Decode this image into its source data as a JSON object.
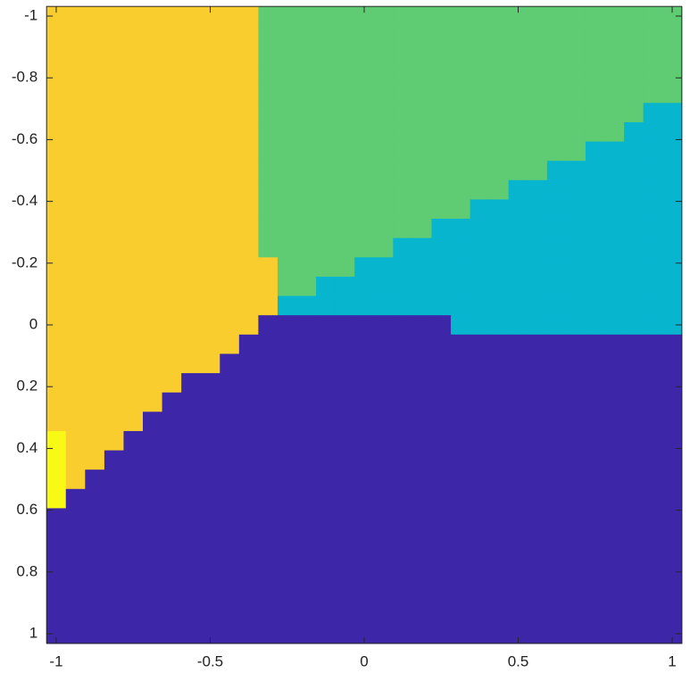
{
  "chart_data": {
    "type": "heatmap",
    "xlim": [
      -1.03125,
      1.03125
    ],
    "ylim": [
      -1.03125,
      1.03125
    ],
    "y_direction": "reverse",
    "xticks": [
      -1,
      -0.5,
      0,
      0.5,
      1
    ],
    "yticks": [
      -1,
      -0.8,
      -0.6,
      -0.4,
      -0.2,
      0,
      0.2,
      0.4,
      0.6,
      0.8,
      1
    ],
    "clim": [
      1,
      5
    ],
    "colormap": [
      "#3e26a8",
      "#07b5cf",
      "#5fcb73",
      "#f9cd2e",
      "#f8f914"
    ],
    "z": [
      [
        4,
        4,
        4,
        4,
        4,
        4,
        4,
        4,
        4,
        4,
        4,
        3,
        3,
        3,
        3,
        3,
        3,
        3,
        3,
        3,
        3,
        3,
        3,
        3,
        3,
        3,
        3,
        3,
        3,
        3,
        3,
        3,
        3
      ],
      [
        4,
        4,
        4,
        4,
        4,
        4,
        4,
        4,
        4,
        4,
        4,
        3,
        3,
        3,
        3,
        3,
        3,
        3,
        3,
        3,
        3,
        3,
        3,
        3,
        3,
        3,
        3,
        3,
        3,
        3,
        3,
        3,
        3
      ],
      [
        4,
        4,
        4,
        4,
        4,
        4,
        4,
        4,
        4,
        4,
        4,
        3,
        3,
        3,
        3,
        3,
        3,
        3,
        3,
        3,
        3,
        3,
        3,
        3,
        3,
        3,
        3,
        3,
        3,
        3,
        3,
        3,
        3
      ],
      [
        4,
        4,
        4,
        4,
        4,
        4,
        4,
        4,
        4,
        4,
        4,
        3,
        3,
        3,
        3,
        3,
        3,
        3,
        3,
        3,
        3,
        3,
        3,
        3,
        3,
        3,
        3,
        3,
        3,
        3,
        3,
        3,
        3
      ],
      [
        4,
        4,
        4,
        4,
        4,
        4,
        4,
        4,
        4,
        4,
        4,
        3,
        3,
        3,
        3,
        3,
        3,
        3,
        3,
        3,
        3,
        3,
        3,
        3,
        3,
        3,
        3,
        3,
        3,
        3,
        3,
        3,
        3
      ],
      [
        4,
        4,
        4,
        4,
        4,
        4,
        4,
        4,
        4,
        4,
        4,
        3,
        3,
        3,
        3,
        3,
        3,
        3,
        3,
        3,
        3,
        3,
        3,
        3,
        3,
        3,
        3,
        3,
        3,
        3,
        3,
        2,
        2
      ],
      [
        4,
        4,
        4,
        4,
        4,
        4,
        4,
        4,
        4,
        4,
        4,
        3,
        3,
        3,
        3,
        3,
        3,
        3,
        3,
        3,
        3,
        3,
        3,
        3,
        3,
        3,
        3,
        3,
        3,
        3,
        2,
        2,
        2
      ],
      [
        4,
        4,
        4,
        4,
        4,
        4,
        4,
        4,
        4,
        4,
        4,
        3,
        3,
        3,
        3,
        3,
        3,
        3,
        3,
        3,
        3,
        3,
        3,
        3,
        3,
        3,
        3,
        3,
        2,
        2,
        2,
        2,
        2
      ],
      [
        4,
        4,
        4,
        4,
        4,
        4,
        4,
        4,
        4,
        4,
        4,
        3,
        3,
        3,
        3,
        3,
        3,
        3,
        3,
        3,
        3,
        3,
        3,
        3,
        3,
        3,
        2,
        2,
        2,
        2,
        2,
        2,
        2
      ],
      [
        4,
        4,
        4,
        4,
        4,
        4,
        4,
        4,
        4,
        4,
        4,
        3,
        3,
        3,
        3,
        3,
        3,
        3,
        3,
        3,
        3,
        3,
        3,
        3,
        2,
        2,
        2,
        2,
        2,
        2,
        2,
        2,
        2
      ],
      [
        4,
        4,
        4,
        4,
        4,
        4,
        4,
        4,
        4,
        4,
        4,
        3,
        3,
        3,
        3,
        3,
        3,
        3,
        3,
        3,
        3,
        3,
        2,
        2,
        2,
        2,
        2,
        2,
        2,
        2,
        2,
        2,
        2
      ],
      [
        4,
        4,
        4,
        4,
        4,
        4,
        4,
        4,
        4,
        4,
        4,
        3,
        3,
        3,
        3,
        3,
        3,
        3,
        3,
        3,
        2,
        2,
        2,
        2,
        2,
        2,
        2,
        2,
        2,
        2,
        2,
        2,
        2
      ],
      [
        4,
        4,
        4,
        4,
        4,
        4,
        4,
        4,
        4,
        4,
        4,
        3,
        3,
        3,
        3,
        3,
        3,
        3,
        2,
        2,
        2,
        2,
        2,
        2,
        2,
        2,
        2,
        2,
        2,
        2,
        2,
        2,
        2
      ],
      [
        4,
        4,
        4,
        4,
        4,
        4,
        4,
        4,
        4,
        4,
        4,
        4,
        3,
        3,
        3,
        3,
        2,
        2,
        2,
        2,
        2,
        2,
        2,
        2,
        2,
        2,
        2,
        2,
        2,
        2,
        2,
        2,
        2
      ],
      [
        4,
        4,
        4,
        4,
        4,
        4,
        4,
        4,
        4,
        4,
        4,
        4,
        3,
        3,
        2,
        2,
        2,
        2,
        2,
        2,
        2,
        2,
        2,
        2,
        2,
        2,
        2,
        2,
        2,
        2,
        2,
        2,
        2
      ],
      [
        4,
        4,
        4,
        4,
        4,
        4,
        4,
        4,
        4,
        4,
        4,
        4,
        2,
        2,
        2,
        2,
        2,
        2,
        2,
        2,
        2,
        2,
        2,
        2,
        2,
        2,
        2,
        2,
        2,
        2,
        2,
        2,
        2
      ],
      [
        4,
        4,
        4,
        4,
        4,
        4,
        4,
        4,
        4,
        4,
        4,
        1,
        1,
        1,
        1,
        1,
        1,
        1,
        1,
        1,
        1,
        2,
        2,
        2,
        2,
        2,
        2,
        2,
        2,
        2,
        2,
        2,
        2
      ],
      [
        4,
        4,
        4,
        4,
        4,
        4,
        4,
        4,
        4,
        4,
        1,
        1,
        1,
        1,
        1,
        1,
        1,
        1,
        1,
        1,
        1,
        1,
        1,
        1,
        1,
        1,
        1,
        1,
        1,
        1,
        1,
        1,
        1
      ],
      [
        4,
        4,
        4,
        4,
        4,
        4,
        4,
        4,
        4,
        1,
        1,
        1,
        1,
        1,
        1,
        1,
        1,
        1,
        1,
        1,
        1,
        1,
        1,
        1,
        1,
        1,
        1,
        1,
        1,
        1,
        1,
        1,
        1
      ],
      [
        4,
        4,
        4,
        4,
        4,
        4,
        4,
        1,
        1,
        1,
        1,
        1,
        1,
        1,
        1,
        1,
        1,
        1,
        1,
        1,
        1,
        1,
        1,
        1,
        1,
        1,
        1,
        1,
        1,
        1,
        1,
        1,
        1
      ],
      [
        4,
        4,
        4,
        4,
        4,
        4,
        1,
        1,
        1,
        1,
        1,
        1,
        1,
        1,
        1,
        1,
        1,
        1,
        1,
        1,
        1,
        1,
        1,
        1,
        1,
        1,
        1,
        1,
        1,
        1,
        1,
        1,
        1
      ],
      [
        4,
        4,
        4,
        4,
        4,
        1,
        1,
        1,
        1,
        1,
        1,
        1,
        1,
        1,
        1,
        1,
        1,
        1,
        1,
        1,
        1,
        1,
        1,
        1,
        1,
        1,
        1,
        1,
        1,
        1,
        1,
        1,
        1
      ],
      [
        5,
        4,
        4,
        4,
        1,
        1,
        1,
        1,
        1,
        1,
        1,
        1,
        1,
        1,
        1,
        1,
        1,
        1,
        1,
        1,
        1,
        1,
        1,
        1,
        1,
        1,
        1,
        1,
        1,
        1,
        1,
        1,
        1
      ],
      [
        5,
        4,
        4,
        1,
        1,
        1,
        1,
        1,
        1,
        1,
        1,
        1,
        1,
        1,
        1,
        1,
        1,
        1,
        1,
        1,
        1,
        1,
        1,
        1,
        1,
        1,
        1,
        1,
        1,
        1,
        1,
        1,
        1
      ],
      [
        5,
        4,
        1,
        1,
        1,
        1,
        1,
        1,
        1,
        1,
        1,
        1,
        1,
        1,
        1,
        1,
        1,
        1,
        1,
        1,
        1,
        1,
        1,
        1,
        1,
        1,
        1,
        1,
        1,
        1,
        1,
        1,
        1
      ],
      [
        5,
        1,
        1,
        1,
        1,
        1,
        1,
        1,
        1,
        1,
        1,
        1,
        1,
        1,
        1,
        1,
        1,
        1,
        1,
        1,
        1,
        1,
        1,
        1,
        1,
        1,
        1,
        1,
        1,
        1,
        1,
        1,
        1
      ],
      [
        1,
        1,
        1,
        1,
        1,
        1,
        1,
        1,
        1,
        1,
        1,
        1,
        1,
        1,
        1,
        1,
        1,
        1,
        1,
        1,
        1,
        1,
        1,
        1,
        1,
        1,
        1,
        1,
        1,
        1,
        1,
        1,
        1
      ],
      [
        1,
        1,
        1,
        1,
        1,
        1,
        1,
        1,
        1,
        1,
        1,
        1,
        1,
        1,
        1,
        1,
        1,
        1,
        1,
        1,
        1,
        1,
        1,
        1,
        1,
        1,
        1,
        1,
        1,
        1,
        1,
        1,
        1
      ],
      [
        1,
        1,
        1,
        1,
        1,
        1,
        1,
        1,
        1,
        1,
        1,
        1,
        1,
        1,
        1,
        1,
        1,
        1,
        1,
        1,
        1,
        1,
        1,
        1,
        1,
        1,
        1,
        1,
        1,
        1,
        1,
        1,
        1
      ],
      [
        1,
        1,
        1,
        1,
        1,
        1,
        1,
        1,
        1,
        1,
        1,
        1,
        1,
        1,
        1,
        1,
        1,
        1,
        1,
        1,
        1,
        1,
        1,
        1,
        1,
        1,
        1,
        1,
        1,
        1,
        1,
        1,
        1
      ],
      [
        1,
        1,
        1,
        1,
        1,
        1,
        1,
        1,
        1,
        1,
        1,
        1,
        1,
        1,
        1,
        1,
        1,
        1,
        1,
        1,
        1,
        1,
        1,
        1,
        1,
        1,
        1,
        1,
        1,
        1,
        1,
        1,
        1
      ],
      [
        1,
        1,
        1,
        1,
        1,
        1,
        1,
        1,
        1,
        1,
        1,
        1,
        1,
        1,
        1,
        1,
        1,
        1,
        1,
        1,
        1,
        1,
        1,
        1,
        1,
        1,
        1,
        1,
        1,
        1,
        1,
        1,
        1
      ],
      [
        1,
        1,
        1,
        1,
        1,
        1,
        1,
        1,
        1,
        1,
        1,
        1,
        1,
        1,
        1,
        1,
        1,
        1,
        1,
        1,
        1,
        1,
        1,
        1,
        1,
        1,
        1,
        1,
        1,
        1,
        1,
        1,
        1
      ]
    ]
  }
}
